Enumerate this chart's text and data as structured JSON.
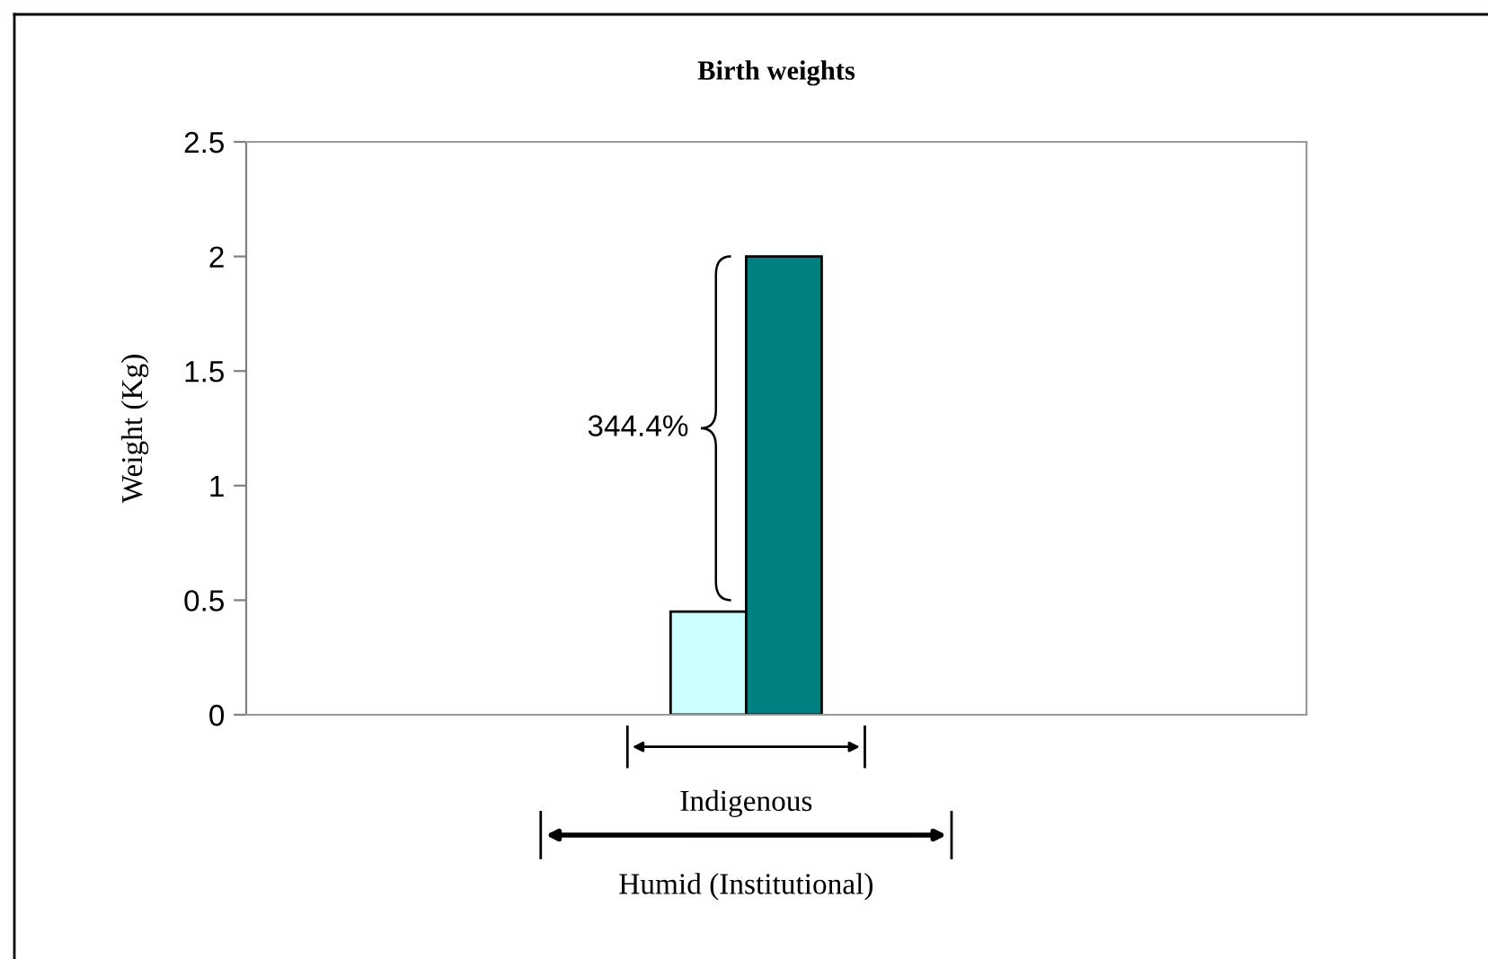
{
  "chart_data": {
    "type": "bar",
    "title": "Birth weights",
    "ylabel": "Weight (Kg)",
    "categories": [
      "Indigenous"
    ],
    "series": [
      {
        "color": "#ccffff",
        "values": [
          0.45
        ]
      },
      {
        "color": "#008080",
        "values": [
          2.0
        ]
      }
    ],
    "ylim": [
      0,
      2.5
    ],
    "yticks": [
      0,
      0.5,
      1,
      1.5,
      2,
      2.5
    ],
    "grid": false,
    "legend": false,
    "annotations": [
      "344.4%",
      "Humid (Institutional)"
    ]
  }
}
